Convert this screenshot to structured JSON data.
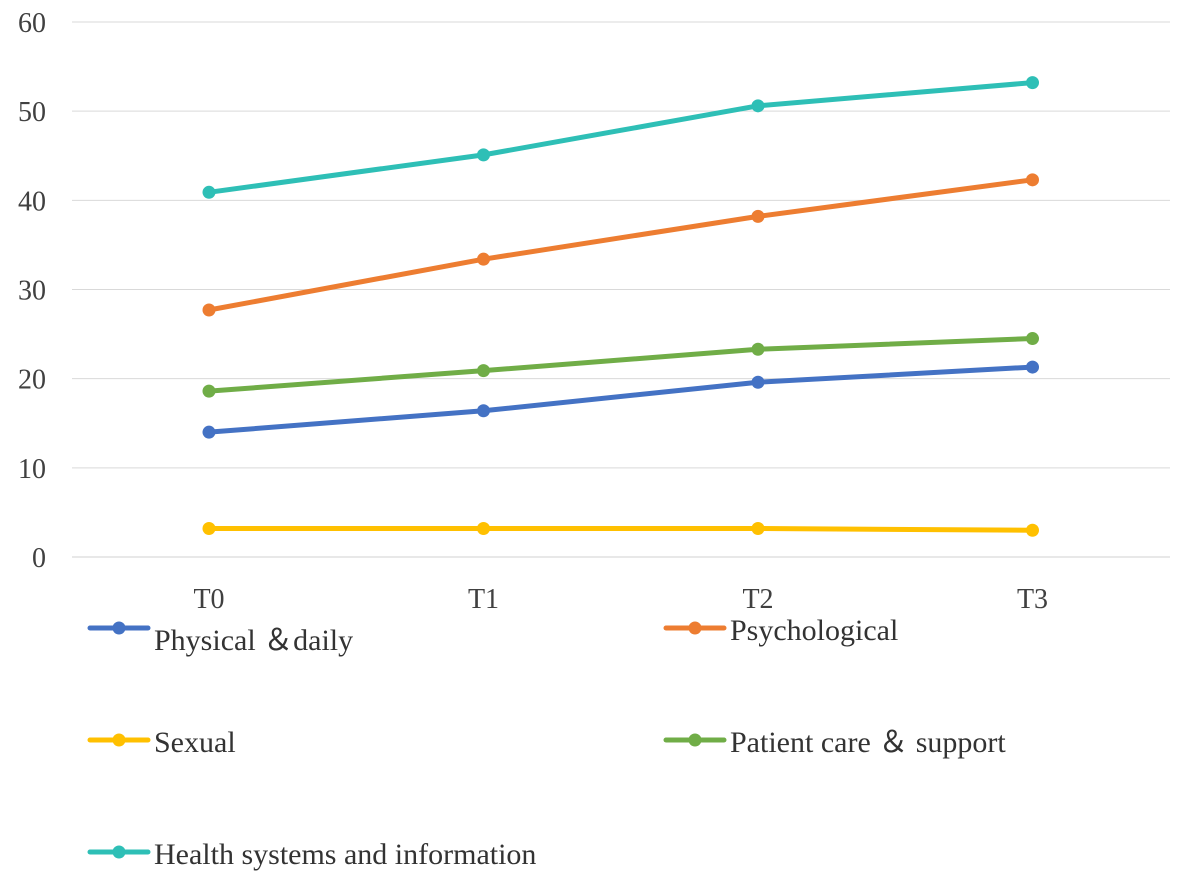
{
  "chart_data": {
    "type": "line",
    "title": "",
    "xlabel": "",
    "ylabel": "",
    "categories": [
      "T0",
      "T1",
      "T2",
      "T3"
    ],
    "ylim": [
      0,
      60
    ],
    "yticks": [
      0,
      10,
      20,
      30,
      40,
      50,
      60
    ],
    "grid": true,
    "legend_position": "bottom",
    "series": [
      {
        "name": "Physical ＆daily",
        "color": "#4472c4",
        "values": [
          14.0,
          16.4,
          19.6,
          21.3
        ]
      },
      {
        "name": "Psychological",
        "color": "#ed7d31",
        "values": [
          27.7,
          33.4,
          38.2,
          42.3
        ]
      },
      {
        "name": "Sexual",
        "color": "#ffc000",
        "values": [
          3.2,
          3.2,
          3.2,
          3.0
        ]
      },
      {
        "name": "Patient care ＆ support",
        "color": "#70ad47",
        "values": [
          18.6,
          20.9,
          23.3,
          24.5
        ]
      },
      {
        "name": "Health systems and information",
        "color": "#2ebfb6",
        "values": [
          40.9,
          45.1,
          50.6,
          53.2
        ]
      }
    ]
  }
}
